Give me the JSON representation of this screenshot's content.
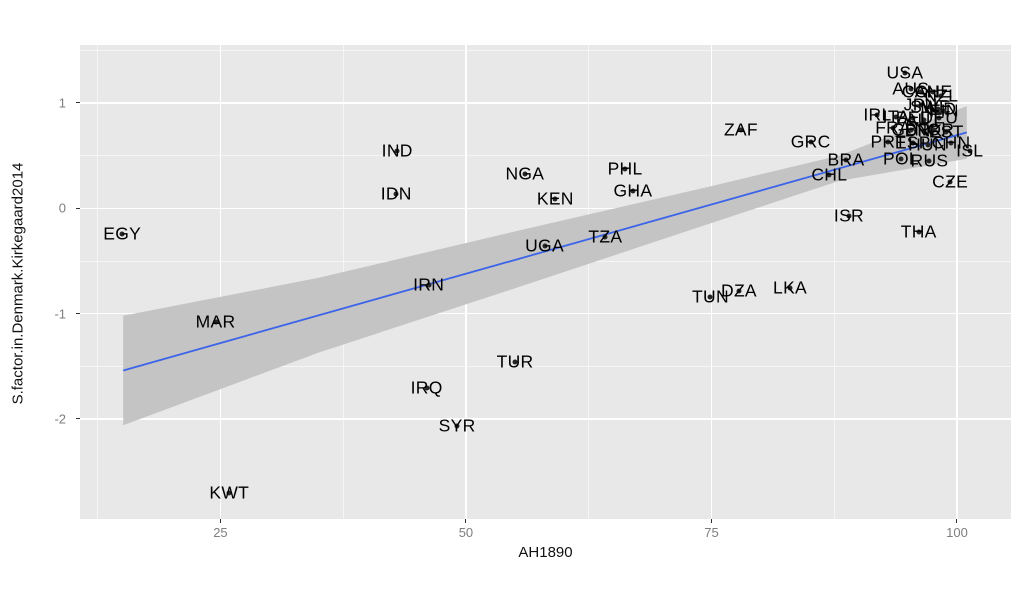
{
  "figure": {
    "background": "#FFFFFF"
  },
  "chart_data": {
    "type": "scatter",
    "title": "",
    "xlabel": "AH1890",
    "ylabel": "S.factor.in.Denmark.Kirkegaard2014",
    "x_range": [
      10.7,
      105.5
    ],
    "y_range": [
      -2.95,
      1.55
    ],
    "x_ticks": [
      25,
      50,
      75,
      100
    ],
    "y_ticks": [
      1,
      0,
      -1,
      -2
    ],
    "x_minor_ticks": [
      12.5,
      37.5,
      62.5,
      87.5
    ],
    "y_minor_ticks": [
      1.5,
      0.5,
      -0.5,
      -1.5
    ],
    "grid": true,
    "legend": false,
    "points": [
      {
        "label": "EGY",
        "x": 15.0,
        "y": -0.24
      },
      {
        "label": "MAR",
        "x": 24.5,
        "y": -1.08
      },
      {
        "label": "KWT",
        "x": 25.9,
        "y": -2.7
      },
      {
        "label": "IND",
        "x": 43.0,
        "y": 0.54
      },
      {
        "label": "IDN",
        "x": 42.9,
        "y": 0.14
      },
      {
        "label": "IRN",
        "x": 46.2,
        "y": -0.73
      },
      {
        "label": "IRQ",
        "x": 46.0,
        "y": -1.71
      },
      {
        "label": "SYR",
        "x": 49.1,
        "y": -2.07
      },
      {
        "label": "TUR",
        "x": 55.0,
        "y": -1.46
      },
      {
        "label": "NGA",
        "x": 56.0,
        "y": 0.33
      },
      {
        "label": "KEN",
        "x": 59.1,
        "y": 0.09
      },
      {
        "label": "UGA",
        "x": 58.0,
        "y": -0.36
      },
      {
        "label": "TZA",
        "x": 64.2,
        "y": -0.27
      },
      {
        "label": "PHL",
        "x": 66.2,
        "y": 0.37
      },
      {
        "label": "GHA",
        "x": 67.0,
        "y": 0.16
      },
      {
        "label": "TUN",
        "x": 74.9,
        "y": -0.84
      },
      {
        "label": "DZA",
        "x": 77.8,
        "y": -0.79
      },
      {
        "label": "LKA",
        "x": 83.0,
        "y": -0.76
      },
      {
        "label": "ZAF",
        "x": 78.0,
        "y": 0.74
      },
      {
        "label": "GRC",
        "x": 85.1,
        "y": 0.63
      },
      {
        "label": "CHL",
        "x": 87.0,
        "y": 0.32
      },
      {
        "label": "BRA",
        "x": 88.7,
        "y": 0.46
      },
      {
        "label": "ISR",
        "x": 89.0,
        "y": -0.07
      },
      {
        "label": "THA",
        "x": 96.1,
        "y": -0.23
      },
      {
        "label": "CZE",
        "x": 99.3,
        "y": 0.25
      },
      {
        "label": "USA",
        "x": 94.7,
        "y": 1.28
      },
      {
        "label": "AUS",
        "x": 95.3,
        "y": 1.13
      },
      {
        "label": "CAN",
        "x": 96.3,
        "y": 1.1
      },
      {
        "label": "CHE",
        "x": 97.6,
        "y": 1.1
      },
      {
        "label": "NZL",
        "x": 98.4,
        "y": 1.07
      },
      {
        "label": "JPN",
        "x": 96.3,
        "y": 0.98
      },
      {
        "label": "SWE",
        "x": 97.3,
        "y": 0.96
      },
      {
        "label": "NLD",
        "x": 98.1,
        "y": 0.94
      },
      {
        "label": "FIN",
        "x": 98.7,
        "y": 0.92
      },
      {
        "label": "IRL",
        "x": 91.9,
        "y": 0.89
      },
      {
        "label": "ITA",
        "x": 93.8,
        "y": 0.87
      },
      {
        "label": "BEL",
        "x": 95.5,
        "y": 0.86
      },
      {
        "label": "AUT",
        "x": 96.6,
        "y": 0.84
      },
      {
        "label": "DEU",
        "x": 98.2,
        "y": 0.86
      },
      {
        "label": "FRA",
        "x": 93.5,
        "y": 0.76
      },
      {
        "label": "GBR",
        "x": 95.3,
        "y": 0.74
      },
      {
        "label": "DNK",
        "x": 96.6,
        "y": 0.73
      },
      {
        "label": "NOR",
        "x": 97.7,
        "y": 0.74
      },
      {
        "label": "EST",
        "x": 98.9,
        "y": 0.72
      },
      {
        "label": "PRT",
        "x": 93.0,
        "y": 0.63
      },
      {
        "label": "ESP",
        "x": 95.5,
        "y": 0.62
      },
      {
        "label": "HUN",
        "x": 97.0,
        "y": 0.6
      },
      {
        "label": "CHN",
        "x": 99.4,
        "y": 0.62
      },
      {
        "label": "ISL",
        "x": 101.3,
        "y": 0.54
      },
      {
        "label": "POL",
        "x": 94.3,
        "y": 0.47
      },
      {
        "label": "RUS",
        "x": 97.2,
        "y": 0.45
      }
    ],
    "smooth_line": {
      "x1": 15.1,
      "y1": -1.54,
      "x2": 101.0,
      "y2": 0.72
    },
    "confidence_band": {
      "upper": [
        [
          15.1,
          -1.02
        ],
        [
          35,
          -0.66
        ],
        [
          55,
          -0.22
        ],
        [
          75,
          0.21
        ],
        [
          88,
          0.5
        ],
        [
          101,
          0.97
        ]
      ],
      "lower": [
        [
          15.1,
          -2.06
        ],
        [
          35,
          -1.37
        ],
        [
          55,
          -0.76
        ],
        [
          75,
          -0.14
        ],
        [
          88,
          0.26
        ],
        [
          101,
          0.47
        ]
      ]
    },
    "colors": {
      "panel_bg": "#E8E8E8",
      "grid_major": "#FFFFFF",
      "grid_minor": "rgba(255,255,255,0.55)",
      "ribbon": "#C4C4C4",
      "line": "#3B64E8",
      "point": "#262626",
      "tick_label": "#7E7E7E",
      "axis_title": "#111111"
    }
  }
}
